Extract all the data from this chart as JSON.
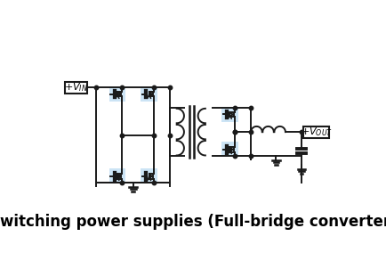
{
  "title": "Switching power supplies (Full-bridge converter)",
  "title_fontsize": 12,
  "title_fontweight": "bold",
  "bg_color": "#ffffff",
  "line_color": "#1a1a1a",
  "highlight_color": "#cce4f5",
  "figsize": [
    4.35,
    3.02
  ],
  "dpi": 100
}
